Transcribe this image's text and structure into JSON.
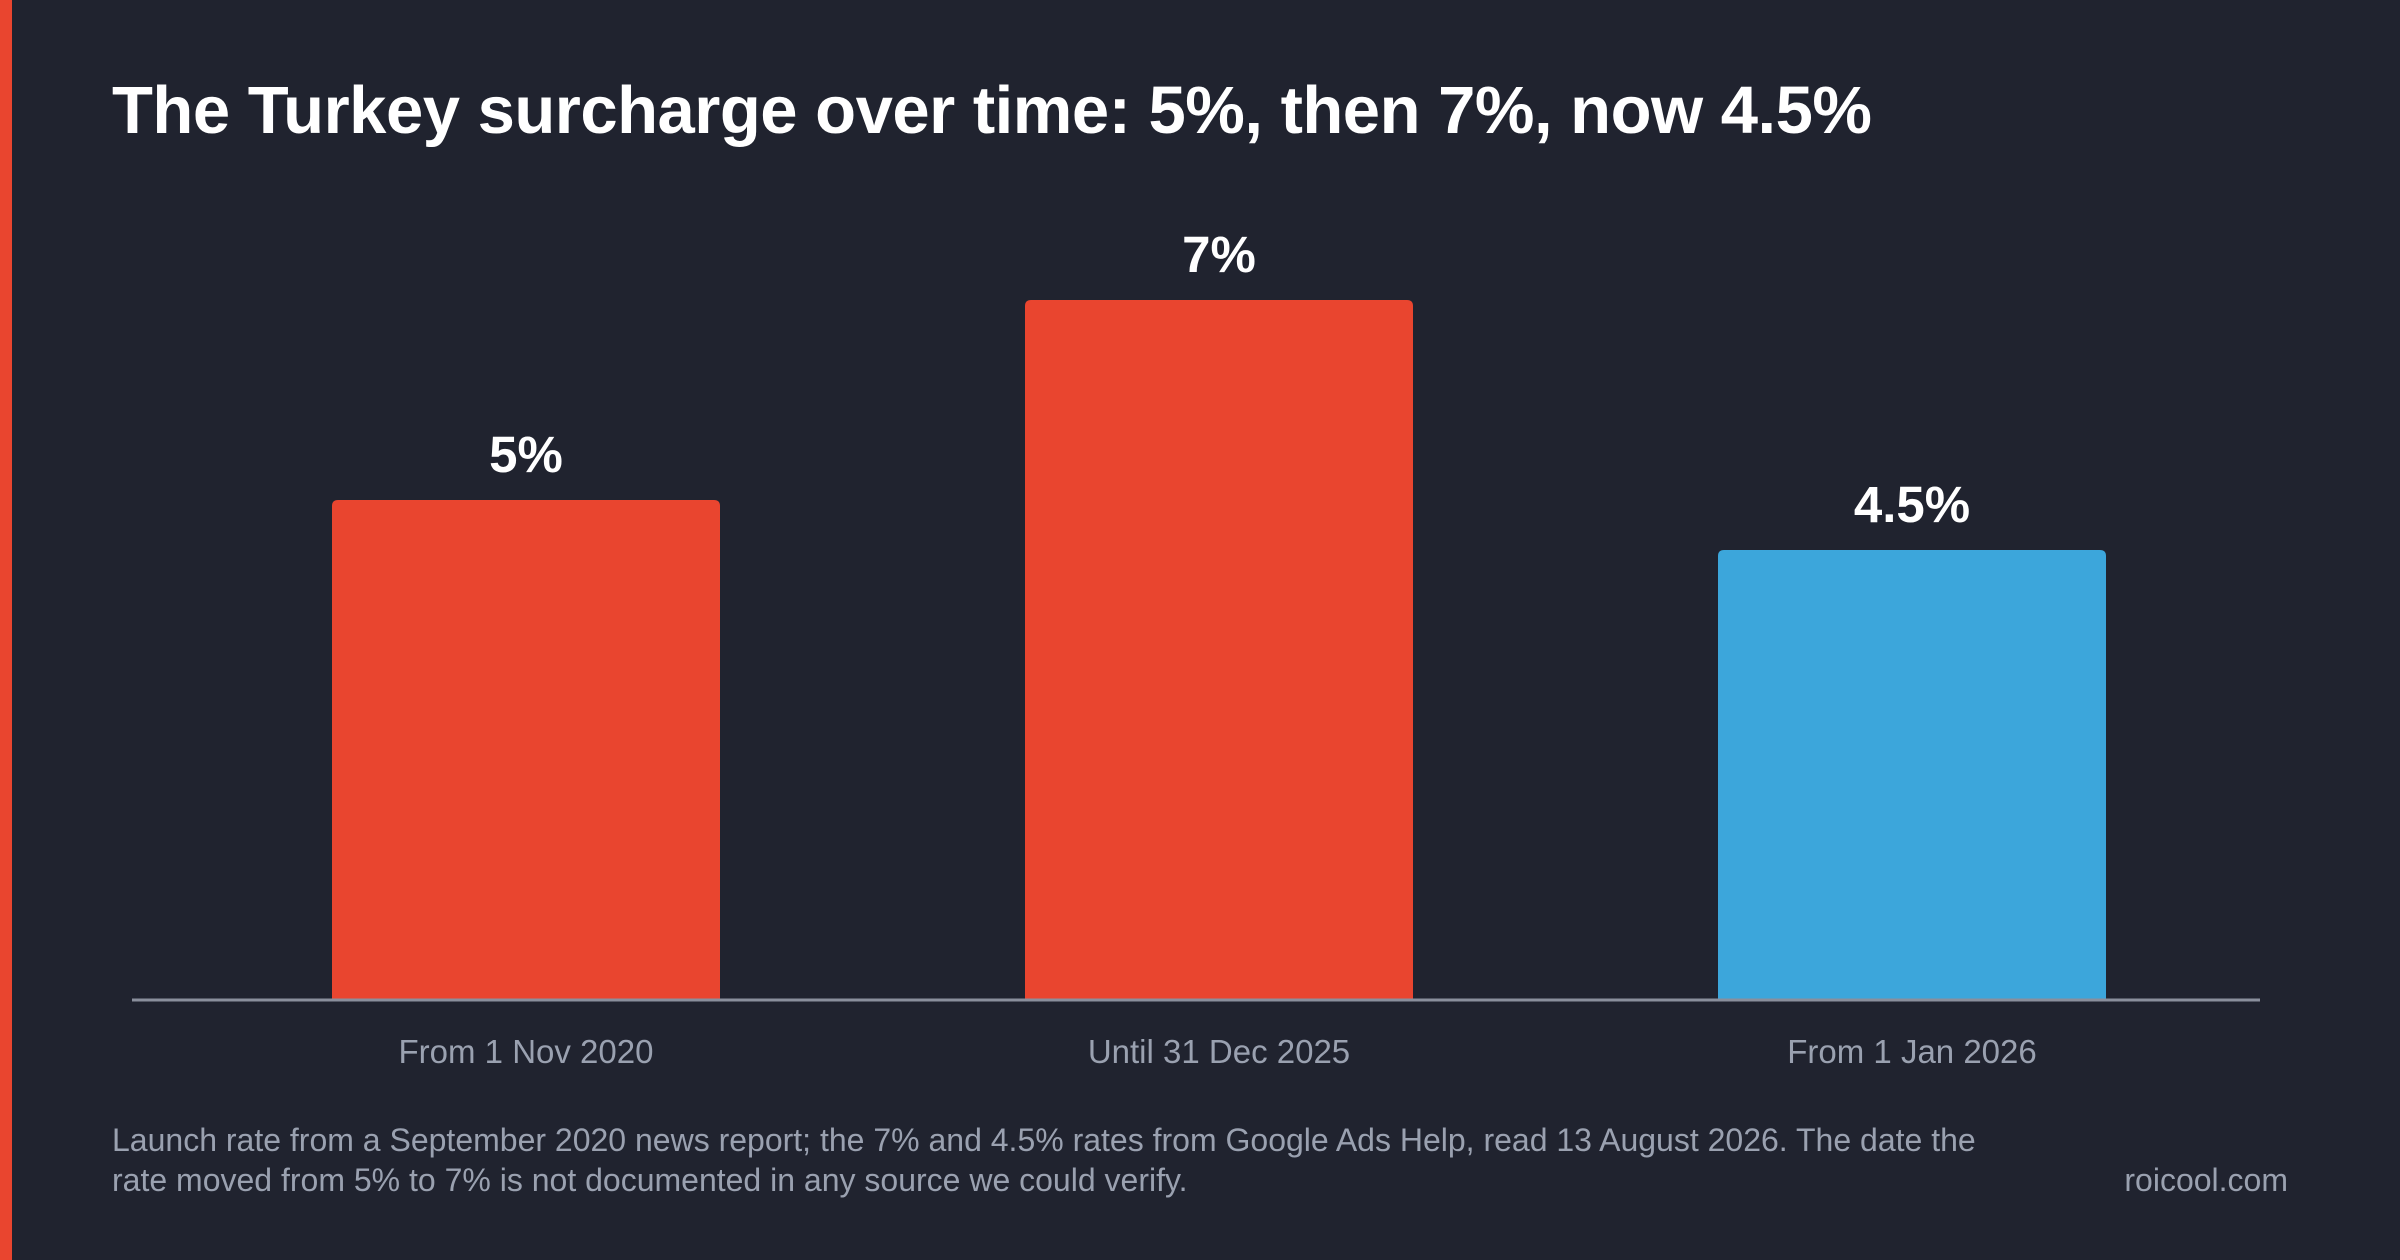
{
  "colors": {
    "background": "#20232f",
    "accent": "#e9452f",
    "highlight": "#3ca6db",
    "axis": "#8a8f9c",
    "tick_label": "#9aa1b0",
    "value_label": "#ffffff"
  },
  "title": "The Turkey surcharge over time: 5%, then 7%, now 4.5%",
  "chart_data": {
    "type": "bar",
    "categories": [
      "From 1 Nov 2020",
      "Until 31 Dec 2025",
      "From 1 Jan 2026"
    ],
    "values": [
      5,
      7,
      4.5
    ],
    "value_labels": [
      "5%",
      "7%",
      "4.5%"
    ],
    "bar_colors": [
      "#e9452f",
      "#e9452f",
      "#3ca6db"
    ],
    "ylim": [
      0,
      7
    ],
    "grid": false,
    "legend": "none"
  },
  "footnote": "Launch rate from a September 2020 news report; the 7% and 4.5% rates from Google Ads Help, read 13 August 2026. The date the rate moved from 5% to 7% is not documented in any source we could verify.",
  "brand": "roicool.com"
}
